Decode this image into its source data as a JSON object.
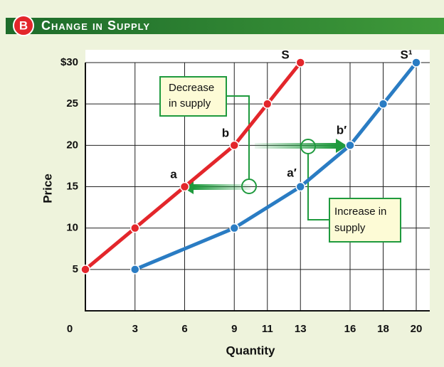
{
  "chart_data": {
    "type": "line",
    "badge": "B",
    "title": "Change in Supply",
    "xlabel": "Quantity",
    "ylabel": "Price",
    "xlim": [
      0,
      20
    ],
    "ylim": [
      0,
      30
    ],
    "xticks": [
      0,
      3,
      6,
      9,
      11,
      13,
      16,
      18,
      20
    ],
    "yticks": [
      5,
      10,
      15,
      20,
      25,
      {
        "value": 30,
        "label": "$30"
      }
    ],
    "grid": true,
    "series": [
      {
        "name": "S",
        "color": "#e3262b",
        "x": [
          0,
          3,
          6,
          9,
          11,
          13
        ],
        "values": [
          5,
          10,
          15,
          20,
          25,
          30
        ]
      },
      {
        "name": "S¹",
        "color": "#2a7cc3",
        "x": [
          3,
          9,
          13,
          16,
          18,
          20
        ],
        "values": [
          5,
          10,
          15,
          20,
          25,
          30
        ]
      }
    ],
    "point_labels": [
      "a",
      "b",
      "a′",
      "b′"
    ],
    "annotations": [
      [
        "Decrease",
        "in supply"
      ],
      [
        "Increase in",
        "supply"
      ]
    ]
  }
}
